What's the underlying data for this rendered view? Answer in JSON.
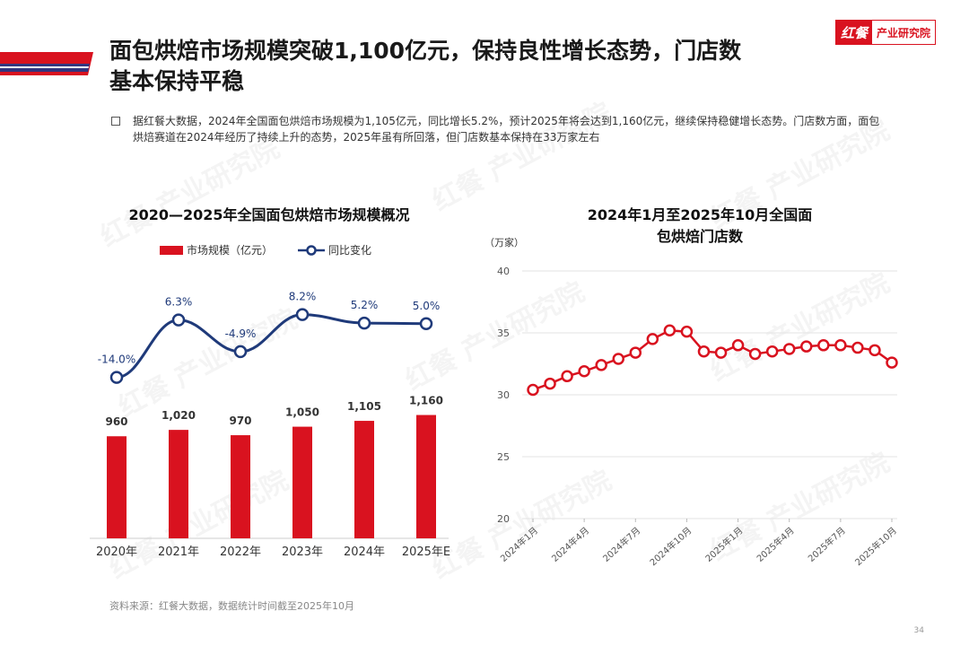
{
  "header": {
    "title_line1": "面包烘焙市场规模突破1,100亿元，保持良性增长态势，门店数",
    "title_line2": "基本保持平稳",
    "logo_mark": "红餐",
    "logo_text": "产业研究院",
    "accent_color": "#d9121f",
    "accent_secondary": "#1f3a8a"
  },
  "summary": {
    "text": "据红餐大数据，2024年全国面包烘焙市场规模为1,105亿元，同比增长5.2%，预计2025年将会达到1,160亿元，继续保持稳健增长态势。门店数方面，面包烘焙赛道在2024年经历了持续上升的态势，2025年虽有所回落，但门店数基本保持在33万家左右"
  },
  "watermark": "红餐 产业研究院",
  "chart_data": [
    {
      "type": "bar",
      "title": "2020—2025年全国面包烘焙市场规模概况",
      "categories": [
        "2020年",
        "2021年",
        "2022年",
        "2023年",
        "2024年",
        "2025年E"
      ],
      "series": [
        {
          "name": "市场规模（亿元）",
          "type": "bar",
          "values": [
            960,
            1020,
            970,
            1050,
            1105,
            1160
          ],
          "labels": [
            "960",
            "1,020",
            "970",
            "1,050",
            "1,105",
            "1,160"
          ],
          "color": "#d9121f"
        },
        {
          "name": "同比变化",
          "type": "line",
          "values": [
            -14.0,
            6.3,
            -4.9,
            8.2,
            5.2,
            5.0
          ],
          "labels": [
            "-14.0%",
            "6.3%",
            "-4.9%",
            "8.2%",
            "5.2%",
            "5.0%"
          ],
          "color": "#1f3a7a"
        }
      ],
      "grid": false,
      "legend": "top"
    },
    {
      "type": "line",
      "title": "2024年1月至2025年10月全国面包烘焙门店数",
      "ylabel": "（万家）",
      "ylim": [
        20,
        40
      ],
      "yticks": [
        20,
        25,
        30,
        35,
        40
      ],
      "x": [
        "2024年1月",
        "2024年2月",
        "2024年3月",
        "2024年4月",
        "2024年5月",
        "2024年6月",
        "2024年7月",
        "2024年8月",
        "2024年9月",
        "2024年10月",
        "2024年11月",
        "2024年12月",
        "2025年1月",
        "2025年2月",
        "2025年3月",
        "2025年4月",
        "2025年5月",
        "2025年6月",
        "2025年7月",
        "2025年8月",
        "2025年9月",
        "2025年10月"
      ],
      "xtick_labels": [
        "2024年1月",
        "2024年4月",
        "2024年7月",
        "2024年10月",
        "2025年1月",
        "2025年4月",
        "2025年7月",
        "2025年10月"
      ],
      "xtick_indices": [
        0,
        3,
        6,
        9,
        12,
        15,
        18,
        21
      ],
      "series": [
        {
          "values": [
            30.4,
            30.9,
            31.5,
            31.9,
            32.4,
            32.9,
            33.4,
            34.5,
            35.2,
            35.1,
            33.5,
            33.4,
            34.0,
            33.3,
            33.5,
            33.7,
            33.9,
            34.0,
            34.0,
            33.8,
            33.6,
            32.6
          ],
          "color": "#d9121f"
        }
      ],
      "grid": true,
      "legend": "none"
    }
  ],
  "footer": {
    "source": "资料来源：红餐大数据，数据统计时间截至2025年10月",
    "page_number": "34"
  }
}
